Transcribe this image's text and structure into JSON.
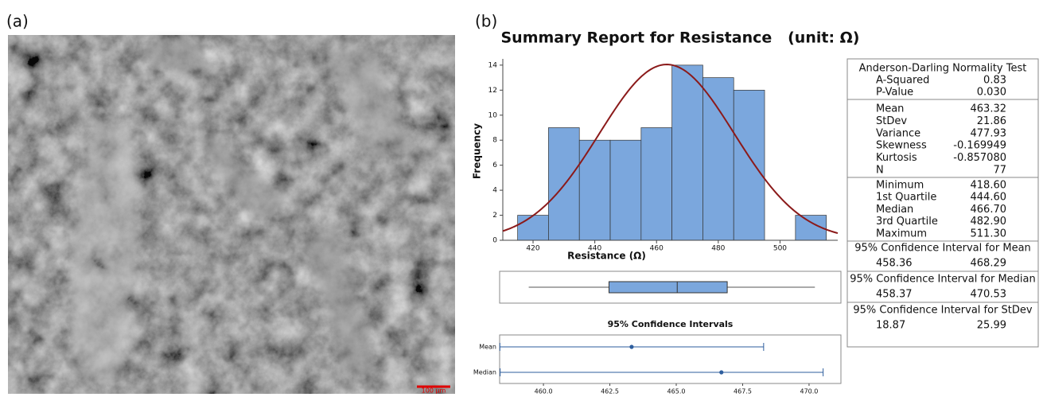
{
  "panel_labels": [
    "(a)",
    "(b)"
  ],
  "image": {
    "scale_bar": "100 µm"
  },
  "report_title": "Summary Report for Resistance   (unit: Ω)",
  "chart_data": [
    {
      "type": "histogram",
      "xlabel": "Resistance (Ω)",
      "ylabel": "Frequency",
      "bins": [
        415,
        425,
        435,
        445,
        455,
        465,
        475,
        485,
        495,
        505,
        515
      ],
      "values": [
        2,
        9,
        8,
        8,
        9,
        14,
        13,
        12,
        0,
        2
      ],
      "color": "#7ba7dd",
      "curve_color": "#8b1a1a",
      "xlim": [
        410.2,
        518.7
      ],
      "xticks": [
        420,
        440,
        460,
        480,
        500
      ],
      "ylim": [
        0,
        14.5
      ],
      "yticks": [
        0,
        2,
        4,
        6,
        8,
        10,
        12,
        14
      ]
    },
    {
      "type": "boxplot",
      "color": "#7ba7dd"
    },
    {
      "type": "interval",
      "title": "95% Confidence Intervals",
      "categories": [
        "Mean",
        "Median"
      ],
      "color": "#2e5e9e",
      "xlim": [
        458.35,
        471.2
      ],
      "xticks": [
        {
          "value": 460,
          "label": "460.0"
        },
        {
          "value": 462.5,
          "label": "462.5"
        },
        {
          "value": 465,
          "label": "465.0"
        },
        {
          "value": 467.5,
          "label": "467.5"
        },
        {
          "value": 470,
          "label": "470.0"
        }
      ]
    }
  ],
  "summary": {
    "normality": {
      "title": "Anderson-Darling Normality Test",
      "rows": [
        [
          "A-Squared",
          "0.83"
        ],
        [
          "P-Value",
          "0.030"
        ]
      ]
    },
    "descriptive": {
      "rows": [
        [
          "Mean",
          "463.32"
        ],
        [
          "StDev",
          "21.86"
        ],
        [
          "Variance",
          "477.93"
        ],
        [
          "Skewness",
          "-0.169949"
        ],
        [
          "Kurtosis",
          "-0.857080"
        ],
        [
          "N",
          "77"
        ]
      ]
    },
    "quartiles": {
      "rows": [
        [
          "Minimum",
          "418.60"
        ],
        [
          "1st Quartile",
          "444.60"
        ],
        [
          "Median",
          "466.70"
        ],
        [
          "3rd Quartile",
          "482.90"
        ],
        [
          "Maximum",
          "511.30"
        ]
      ]
    },
    "ci": [
      {
        "title": "95% Confidence Interval for Mean",
        "values": [
          "458.36",
          "468.29"
        ]
      },
      {
        "title": "95% Confidence Interval for Median",
        "values": [
          "458.37",
          "470.53"
        ]
      },
      {
        "title": "95% Confidence Interval for StDev",
        "values": [
          "18.87",
          "25.99"
        ]
      }
    ]
  }
}
